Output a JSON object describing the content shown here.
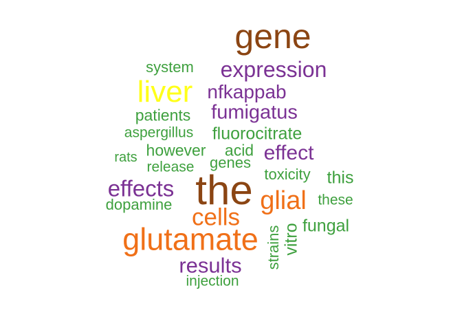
{
  "word_cloud": {
    "colors": {
      "brown": "#8b4513",
      "purple": "#7b3294",
      "yellow": "#ffff1a",
      "orange": "#f07018",
      "green": "#3ea03e"
    },
    "words": [
      {
        "text": "gene",
        "color": "brown"
      },
      {
        "text": "expression",
        "color": "purple"
      },
      {
        "text": "system",
        "color": "green"
      },
      {
        "text": "liver",
        "color": "yellow"
      },
      {
        "text": "nfkappab",
        "color": "purple"
      },
      {
        "text": "patients",
        "color": "green"
      },
      {
        "text": "fumigatus",
        "color": "purple"
      },
      {
        "text": "aspergillus",
        "color": "green"
      },
      {
        "text": "fluorocitrate",
        "color": "green"
      },
      {
        "text": "rats",
        "color": "green"
      },
      {
        "text": "however",
        "color": "green"
      },
      {
        "text": "acid",
        "color": "green"
      },
      {
        "text": "effect",
        "color": "purple"
      },
      {
        "text": "release",
        "color": "green"
      },
      {
        "text": "genes",
        "color": "green"
      },
      {
        "text": "toxicity",
        "color": "green"
      },
      {
        "text": "this",
        "color": "green"
      },
      {
        "text": "the",
        "color": "brown"
      },
      {
        "text": "effects",
        "color": "purple"
      },
      {
        "text": "glial",
        "color": "orange"
      },
      {
        "text": "these",
        "color": "green"
      },
      {
        "text": "dopamine",
        "color": "green"
      },
      {
        "text": "cells",
        "color": "orange"
      },
      {
        "text": "fungal",
        "color": "green"
      },
      {
        "text": "glutamate",
        "color": "orange"
      },
      {
        "text": "strains",
        "color": "green"
      },
      {
        "text": "vitro",
        "color": "green"
      },
      {
        "text": "results",
        "color": "purple"
      },
      {
        "text": "injection",
        "color": "green"
      }
    ]
  }
}
